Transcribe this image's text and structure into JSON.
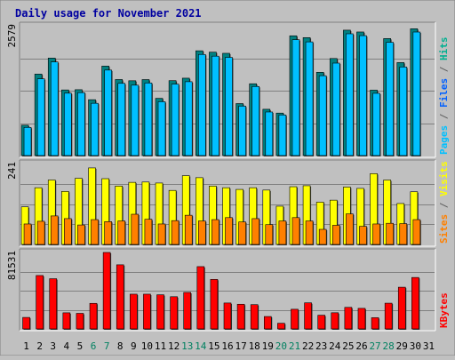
{
  "chart_data": {
    "type": "bar",
    "title": "Daily usage for November 2021",
    "categories": [
      "1",
      "2",
      "3",
      "4",
      "5",
      "6",
      "7",
      "8",
      "9",
      "10",
      "11",
      "12",
      "13",
      "14",
      "15",
      "16",
      "17",
      "18",
      "19",
      "20",
      "21",
      "22",
      "23",
      "24",
      "25",
      "26",
      "27",
      "28",
      "29",
      "30",
      "31"
    ],
    "weekend_days": [
      "6",
      "7",
      "13",
      "14",
      "20",
      "21",
      "27",
      "28"
    ],
    "panels": [
      {
        "id": "hits",
        "max_label": "2579",
        "ymax": 2579,
        "legend": [
          {
            "text": "Pages",
            "color": "#00c0ff"
          },
          {
            "text": " / ",
            "color": "#606060"
          },
          {
            "text": "Files",
            "color": "#0060ff"
          },
          {
            "text": " / ",
            "color": "#606060"
          },
          {
            "text": "Hits",
            "color": "#00b090"
          }
        ],
        "series": [
          {
            "name": "Hits",
            "color": "#008080",
            "values": [
              603,
              1619,
              1937,
              1304,
              1309,
              1110,
              1778,
              1511,
              1487,
              1510,
              1137,
              1489,
              1538,
              2082,
              2055,
              2032,
              1033,
              1427,
              920,
              844,
              2380,
              2344,
              1655,
              1929,
              2492,
              2456,
              1300,
              2325,
              1848,
              2520,
              0
            ]
          },
          {
            "name": "Files",
            "color": "#00c0ff",
            "values": [
              560,
              1525,
              1860,
              1240,
              1250,
              1039,
              1699,
              1435,
              1399,
              1442,
              1070,
              1420,
              1468,
              2009,
              1975,
              1951,
              983,
              1373,
              866,
              807,
              2302,
              2259,
              1587,
              1837,
              2420,
              2383,
              1237,
              2250,
              1760,
              2455,
              0
            ]
          }
        ]
      },
      {
        "id": "visits",
        "max_label": "241",
        "ymax": 241,
        "legend": [
          {
            "text": "Sites",
            "color": "#ff8000"
          },
          {
            "text": " / ",
            "color": "#606060"
          },
          {
            "text": "Visits",
            "color": "#ffff00"
          }
        ],
        "series": [
          {
            "name": "Visits",
            "color": "#ffff00",
            "values": [
              112,
              169,
              192,
              158,
              197,
              228,
              196,
              174,
              185,
              186,
              183,
              161,
              205,
              199,
              174,
              169,
              164,
              169,
              162,
              114,
              172,
              175,
              126,
              132,
              171,
              167,
              211,
              192,
              122,
              157,
              0
            ]
          },
          {
            "name": "Sites",
            "color": "#ff8000",
            "values": [
              61,
              69,
              85,
              77,
              58,
              74,
              68,
              70,
              90,
              75,
              61,
              71,
              87,
              70,
              74,
              80,
              67,
              77,
              59,
              70,
              80,
              70,
              45,
              57,
              91,
              54,
              61,
              63,
              62,
              74,
              0
            ]
          }
        ]
      },
      {
        "id": "kbytes",
        "max_label": "81531",
        "ymax": 81531,
        "legend": [
          {
            "text": "KBytes",
            "color": "#ff0000"
          }
        ],
        "series": [
          {
            "name": "KBytes",
            "color": "#ff0000",
            "values": [
              12240,
              56940,
              53520,
              17160,
              16560,
              27240,
              81531,
              68360,
              37020,
              37020,
              36360,
              34320,
              38880,
              66420,
              52800,
              27600,
              26280,
              25860,
              13200,
              6000,
              20940,
              27780,
              14580,
              17220,
              22980,
              21900,
              11940,
              27420,
              44460,
              54840,
              0
            ]
          }
        ]
      }
    ]
  }
}
